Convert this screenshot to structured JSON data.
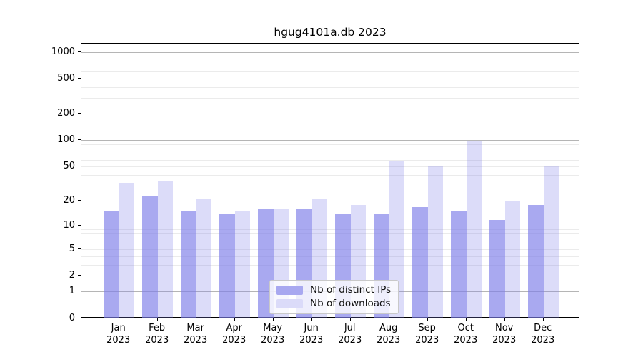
{
  "title": "hgug4101a.db 2023",
  "legend": {
    "items": [
      {
        "label": "Nb of distinct IPs",
        "swatch_color": "#a8a8f0"
      },
      {
        "label": "Nb of downloads",
        "swatch_color": "#dbdbf9"
      }
    ],
    "position": "inside-bottom-center"
  },
  "colors": {
    "bar_base": "#7c7ce8",
    "ips_alpha": 0.66,
    "downloads_alpha": 0.27,
    "ips_solid": "#a8a8f0",
    "downloads_solid": "#dbdbf9",
    "grid_minor": "#ebebeb",
    "grid_major": "#b5b5b5"
  },
  "chart_data": {
    "type": "bar",
    "title": "hgug4101a.db 2023",
    "categories": [
      "Jan",
      "Feb",
      "Mar",
      "Apr",
      "May",
      "Jun",
      "Jul",
      "Aug",
      "Sep",
      "Oct",
      "Nov",
      "Dec"
    ],
    "year": "2023",
    "series": [
      {
        "name": "Nb of distinct IPs",
        "values": [
          15,
          23,
          15,
          14,
          16,
          16,
          14,
          14,
          17,
          15,
          12,
          18
        ]
      },
      {
        "name": "Nb of downloads",
        "values": [
          32,
          35,
          21,
          15,
          16,
          21,
          18,
          58,
          52,
          100,
          20,
          51
        ]
      }
    ],
    "xlabel": "",
    "ylabel": "",
    "y_ticks": [
      0,
      1,
      2,
      5,
      10,
      20,
      50,
      100,
      200,
      500,
      1000
    ],
    "y_major_gridlines": [
      1,
      10,
      100,
      1000
    ],
    "y_minor_gridlines": [
      2,
      3,
      4,
      5,
      6,
      7,
      8,
      9,
      20,
      30,
      40,
      50,
      60,
      70,
      80,
      90,
      200,
      300,
      400,
      500,
      600,
      700,
      800,
      900
    ],
    "scale": "log10(1+value)",
    "ylim": [
      0,
      1250
    ],
    "grid": true,
    "legend_position": "bottom center inside"
  }
}
